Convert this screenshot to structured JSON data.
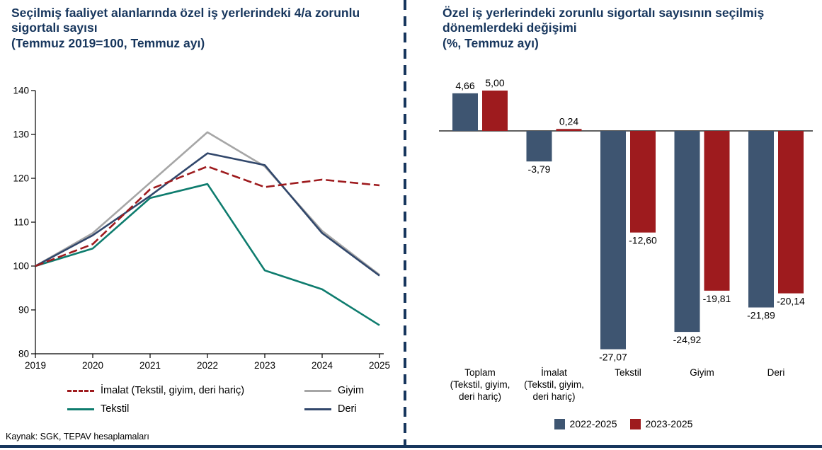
{
  "page": {
    "source_note": "Kaynak: SGK, TEPAV hesaplamaları",
    "accent_navy": "#17365D"
  },
  "chart_data": [
    {
      "type": "line",
      "title": "Seçilmiş faaliyet alanlarında özel iş yerlerindeki 4/a zorunlu sigortalı sayısı",
      "subtitle": "(Temmuz 2019=100, Temmuz ayı)",
      "x": [
        2019,
        2020,
        2021,
        2022,
        2023,
        2024,
        2025
      ],
      "ylim": [
        80,
        140
      ],
      "yticks": [
        80,
        90,
        100,
        110,
        120,
        130,
        140
      ],
      "grid": false,
      "legend_position": "bottom",
      "series": [
        {
          "name": "İmalat (Tekstil, giyim, deri hariç)",
          "color": "#9E1B1E",
          "dash": true,
          "values": [
            100,
            105,
            117.5,
            122.7,
            118,
            119.7,
            118.4
          ]
        },
        {
          "name": "Giyim",
          "color": "#A6A6A6",
          "dash": false,
          "values": [
            100,
            107.5,
            119,
            130.5,
            122.7,
            108,
            98
          ]
        },
        {
          "name": "Tekstil",
          "color": "#0E7C6E",
          "dash": false,
          "values": [
            100,
            104,
            115.5,
            118.7,
            99,
            94.7,
            86.5
          ]
        },
        {
          "name": "Deri",
          "color": "#31476B",
          "dash": false,
          "values": [
            100,
            107,
            116,
            125.7,
            123,
            107.5,
            97.8
          ]
        }
      ]
    },
    {
      "type": "bar",
      "title": "Özel iş yerlerindeki zorunlu sigortalı sayısının seçilmiş dönemlerdeki değişimi",
      "subtitle": "(%, Temmuz ayı)",
      "categories": [
        "Toplam (Tekstil, giyim, deri hariç)",
        "İmalat (Tekstil, giyim, deri hariç)",
        "Tekstil",
        "Giyim",
        "Deri"
      ],
      "category_lines": [
        [
          "Toplam",
          "(Tekstil, giyim,",
          "deri hariç)"
        ],
        [
          "İmalat",
          "(Tekstil, giyim,",
          "deri hariç)"
        ],
        [
          "Tekstil"
        ],
        [
          "Giyim"
        ],
        [
          "Deri"
        ]
      ],
      "ylim": [
        -30,
        8
      ],
      "grid": false,
      "legend_position": "bottom",
      "series": [
        {
          "name": "2022-2025",
          "color": "#3E5571",
          "values": [
            4.66,
            -3.79,
            -27.07,
            -24.92,
            -21.89
          ],
          "value_labels": [
            "4,66",
            "-3,79",
            "-27,07",
            "-24,92",
            "-21,89"
          ]
        },
        {
          "name": "2023-2025",
          "color": "#9E1B1E",
          "values": [
            5.0,
            0.24,
            -12.6,
            -19.81,
            -20.14
          ],
          "value_labels": [
            "5,00",
            "0,24",
            "-12,60",
            "-19,81",
            "-20,14"
          ]
        }
      ]
    }
  ]
}
